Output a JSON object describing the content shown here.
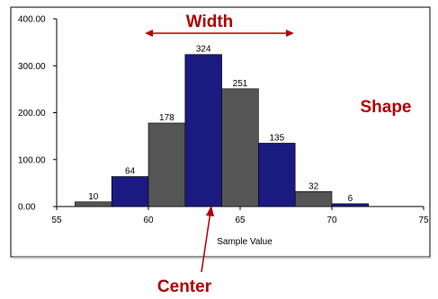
{
  "chart_data": {
    "type": "bar",
    "title": "",
    "xlabel": "Sample Value",
    "ylabel": "",
    "xlim": [
      55,
      75
    ],
    "ylim": [
      0,
      400
    ],
    "x_ticks": [
      "55",
      "60",
      "65",
      "70",
      "75"
    ],
    "y_ticks": [
      "0.00",
      "100.00",
      "200.00",
      "300.00",
      "400.00"
    ],
    "grid": false,
    "bins": [
      {
        "start": 56,
        "end": 58,
        "value": 10,
        "label": "10",
        "color": "#555555"
      },
      {
        "start": 58,
        "end": 60,
        "value": 64,
        "label": "64",
        "color": "#1a1a80"
      },
      {
        "start": 60,
        "end": 62,
        "value": 178,
        "label": "178",
        "color": "#555555"
      },
      {
        "start": 62,
        "end": 64,
        "value": 324,
        "label": "324",
        "color": "#1a1a80"
      },
      {
        "start": 64,
        "end": 66,
        "value": 251,
        "label": "251",
        "color": "#555555"
      },
      {
        "start": 66,
        "end": 68,
        "value": 135,
        "label": "135",
        "color": "#1a1a80"
      },
      {
        "start": 68,
        "end": 70,
        "value": 32,
        "label": "32",
        "color": "#555555"
      },
      {
        "start": 70,
        "end": 72,
        "value": 6,
        "label": "6",
        "color": "#1a1a80"
      }
    ],
    "annotations": {
      "width": "Width",
      "shape": "Shape",
      "center": "Center"
    },
    "annotation_color": "#b00000"
  }
}
